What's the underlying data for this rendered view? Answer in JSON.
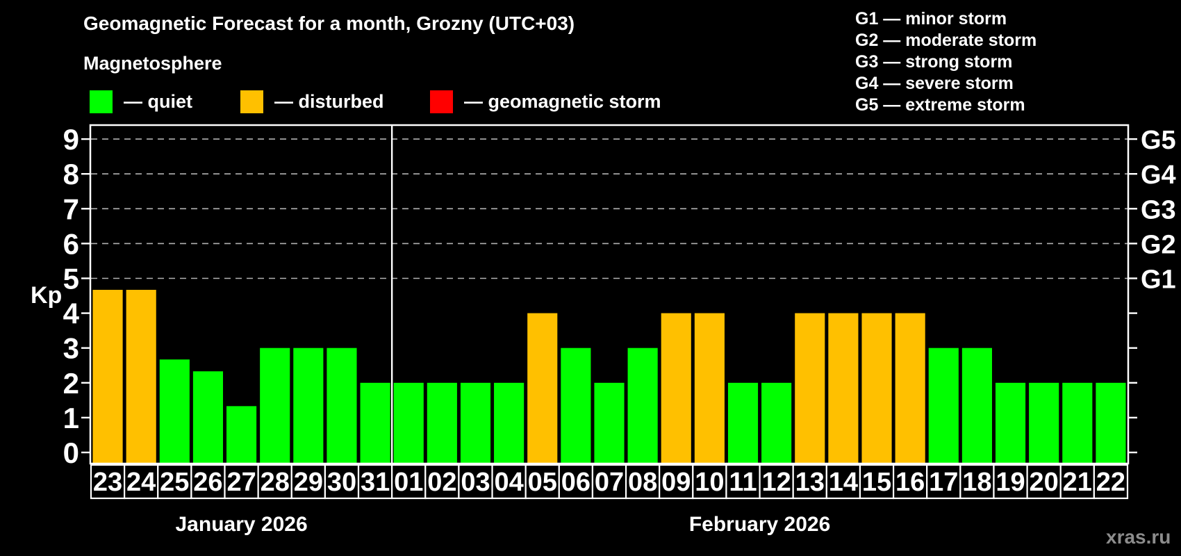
{
  "header": {
    "title": "Geomagnetic Forecast for a month, Grozny (UTC+03)",
    "subtitle": "Magnetosphere"
  },
  "legend": {
    "items": [
      {
        "name": "quiet",
        "label": "— quiet",
        "color": "#00FF00"
      },
      {
        "name": "disturbed",
        "label": "— disturbed",
        "color": "#FFC000"
      },
      {
        "name": "storm",
        "label": "— geomagnetic storm",
        "color": "#FF0000"
      }
    ]
  },
  "storm_scale_legend": {
    "items": [
      "G1 — minor storm",
      "G2 — moderate storm",
      "G3 — strong storm",
      "G4 — severe storm",
      "G5 — extreme storm"
    ]
  },
  "watermark": "xras.ru",
  "chart_data": {
    "type": "bar",
    "title": "Geomagnetic Forecast for a month, Grozny (UTC+03)",
    "xlabel": "",
    "ylabel": "Kp",
    "ylim": [
      0,
      9.4
    ],
    "yticks": [
      0,
      1,
      2,
      3,
      4,
      5,
      6,
      7,
      8,
      9
    ],
    "gridlines_at": [
      5,
      6,
      7,
      8,
      9
    ],
    "grid": "dashed-horizontal-only",
    "legend_position": "top",
    "right_axis_labels": [
      {
        "label": "G1",
        "level": 5
      },
      {
        "label": "G2",
        "level": 6
      },
      {
        "label": "G3",
        "level": 7
      },
      {
        "label": "G4",
        "level": 8
      },
      {
        "label": "G5",
        "level": 9
      }
    ],
    "months": [
      {
        "label": "January 2026",
        "days_count": 9
      },
      {
        "label": "February 2026",
        "days_count": 22
      }
    ],
    "categories": [
      "23",
      "24",
      "25",
      "26",
      "27",
      "28",
      "29",
      "30",
      "31",
      "01",
      "02",
      "03",
      "04",
      "05",
      "06",
      "07",
      "08",
      "09",
      "10",
      "11",
      "12",
      "13",
      "14",
      "15",
      "16",
      "17",
      "18",
      "19",
      "20",
      "21",
      "22"
    ],
    "values": [
      4.67,
      4.67,
      2.67,
      2.33,
      1.33,
      3,
      3,
      3,
      2,
      2,
      2,
      2,
      2,
      4,
      3,
      2,
      3,
      4,
      4,
      2,
      2,
      4,
      4,
      4,
      4,
      3,
      3,
      2,
      2,
      2,
      2
    ],
    "status": [
      "disturbed",
      "disturbed",
      "quiet",
      "quiet",
      "quiet",
      "quiet",
      "quiet",
      "quiet",
      "quiet",
      "quiet",
      "quiet",
      "quiet",
      "quiet",
      "disturbed",
      "quiet",
      "quiet",
      "quiet",
      "disturbed",
      "disturbed",
      "quiet",
      "quiet",
      "disturbed",
      "disturbed",
      "disturbed",
      "disturbed",
      "quiet",
      "quiet",
      "quiet",
      "quiet",
      "quiet",
      "quiet"
    ],
    "status_colors": {
      "quiet": "#00FF00",
      "disturbed": "#FFC000",
      "storm": "#FF0000"
    },
    "axis_color": "#FFFFFF",
    "gridline_color": "#B3B3B3",
    "background_color": "#000000"
  }
}
